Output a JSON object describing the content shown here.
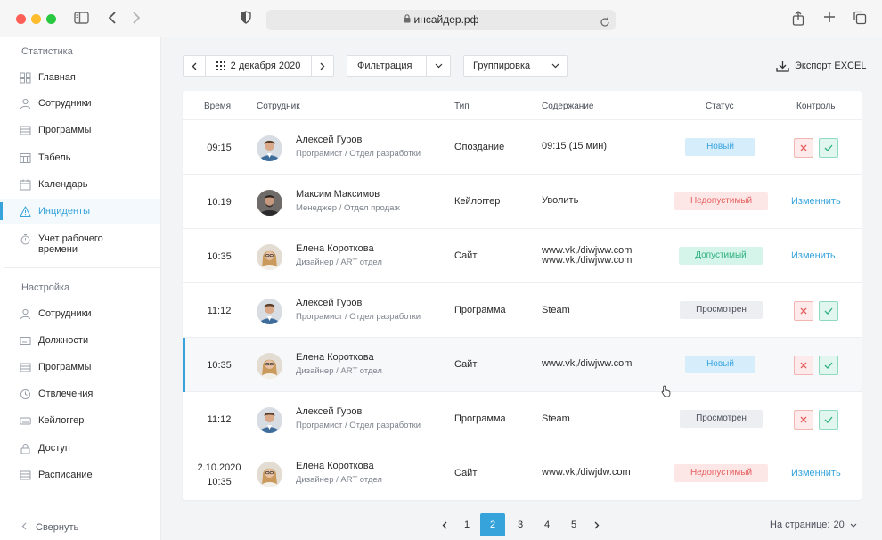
{
  "browser": {
    "url": "инсайдер.рф"
  },
  "sidebar": {
    "section1_title": "Статистика",
    "section1_items": [
      {
        "label": "Главная",
        "icon": "grid-icon"
      },
      {
        "label": "Сотрудники",
        "icon": "user-icon"
      },
      {
        "label": "Программы",
        "icon": "list-icon"
      },
      {
        "label": "Табель",
        "icon": "table-icon"
      },
      {
        "label": "Календарь",
        "icon": "calendar-icon"
      },
      {
        "label": "Инциденты",
        "icon": "warning-icon",
        "active": true
      },
      {
        "label": "Учет рабочего времени",
        "icon": "stopwatch-icon"
      }
    ],
    "section2_title": "Настройка",
    "section2_items": [
      {
        "label": "Сотрудники",
        "icon": "user-icon"
      },
      {
        "label": "Должности",
        "icon": "id-card-icon"
      },
      {
        "label": "Программы",
        "icon": "list-icon"
      },
      {
        "label": "Отвлечения",
        "icon": "clock-icon"
      },
      {
        "label": "Кейлоггер",
        "icon": "keyboard-icon"
      },
      {
        "label": "Доступ",
        "icon": "lock-icon"
      },
      {
        "label": "Расписание",
        "icon": "schedule-icon"
      }
    ],
    "collapse_label": "Свернуть"
  },
  "toolbar": {
    "date": "2 декабря 2020",
    "filter": "Фильтрация",
    "grouping": "Группировка",
    "export": "Экспорт EXCEL"
  },
  "table": {
    "headers": {
      "time": "Время",
      "employee": "Сотрудник",
      "type": "Тип",
      "content": "Содержание",
      "status": "Статус",
      "control": "Контроль"
    },
    "rows": [
      {
        "time": "09:15",
        "name": "Алексей Гуров",
        "role": "Програмист / Отдел разработки",
        "type": "Опоздание",
        "content": [
          "09:15 (15 мин)"
        ],
        "status": "Новый",
        "status_kind": "new",
        "control": "buttons"
      },
      {
        "time": "10:19",
        "name": "Максим Максимов",
        "role": "Менеджер / Отдел продаж",
        "type": "Кейлоггер",
        "content": [
          "Уволить"
        ],
        "status": "Недопустимый",
        "status_kind": "bad",
        "control": "link",
        "control_label": "Изменнить"
      },
      {
        "time": "10:35",
        "name": "Елена Короткова",
        "role": "Дизайнер / ART отдел",
        "type": "Сайт",
        "content": [
          "www.vk,/diwjww.com",
          "www.vk,/diwjww.com"
        ],
        "status": "Допустимый",
        "status_kind": "ok",
        "control": "link",
        "control_label": "Изменить"
      },
      {
        "time": "11:12",
        "name": "Алексей Гуров",
        "role": "Програмист / Отдел разработки",
        "type": "Программа",
        "content": [
          "Steam"
        ],
        "status": "Просмотрен",
        "status_kind": "seen",
        "control": "buttons"
      },
      {
        "time": "10:35",
        "name": "Елена Короткова",
        "role": "Дизайнер / ART отдел",
        "type": "Сайт",
        "content": [
          "www.vk,/diwjww.com"
        ],
        "status": "Новый",
        "status_kind": "new",
        "control": "buttons",
        "highlight": true
      },
      {
        "time": "11:12",
        "name": "Алексей Гуров",
        "role": "Програмист / Отдел разработки",
        "type": "Программа",
        "content": [
          "Steam"
        ],
        "status": "Просмотрен",
        "status_kind": "seen",
        "control": "buttons"
      },
      {
        "time": [
          "2.10.2020",
          "10:35"
        ],
        "name": "Елена Короткова",
        "role": "Дизайнер / ART отдел",
        "type": "Сайт",
        "content": [
          "www.vk,/diwjdw.com"
        ],
        "status": "Недопустимый",
        "status_kind": "bad",
        "control": "link",
        "control_label": "Изменнить"
      }
    ]
  },
  "pagination": {
    "pages": [
      "1",
      "2",
      "3",
      "4",
      "5"
    ],
    "current": "2",
    "per_page_label": "На странице:",
    "per_page_value": "20"
  },
  "colors": {
    "accent": "#36a3db",
    "new": "#3aa4de",
    "bad": "#e55f5f",
    "ok": "#2cb07f"
  }
}
